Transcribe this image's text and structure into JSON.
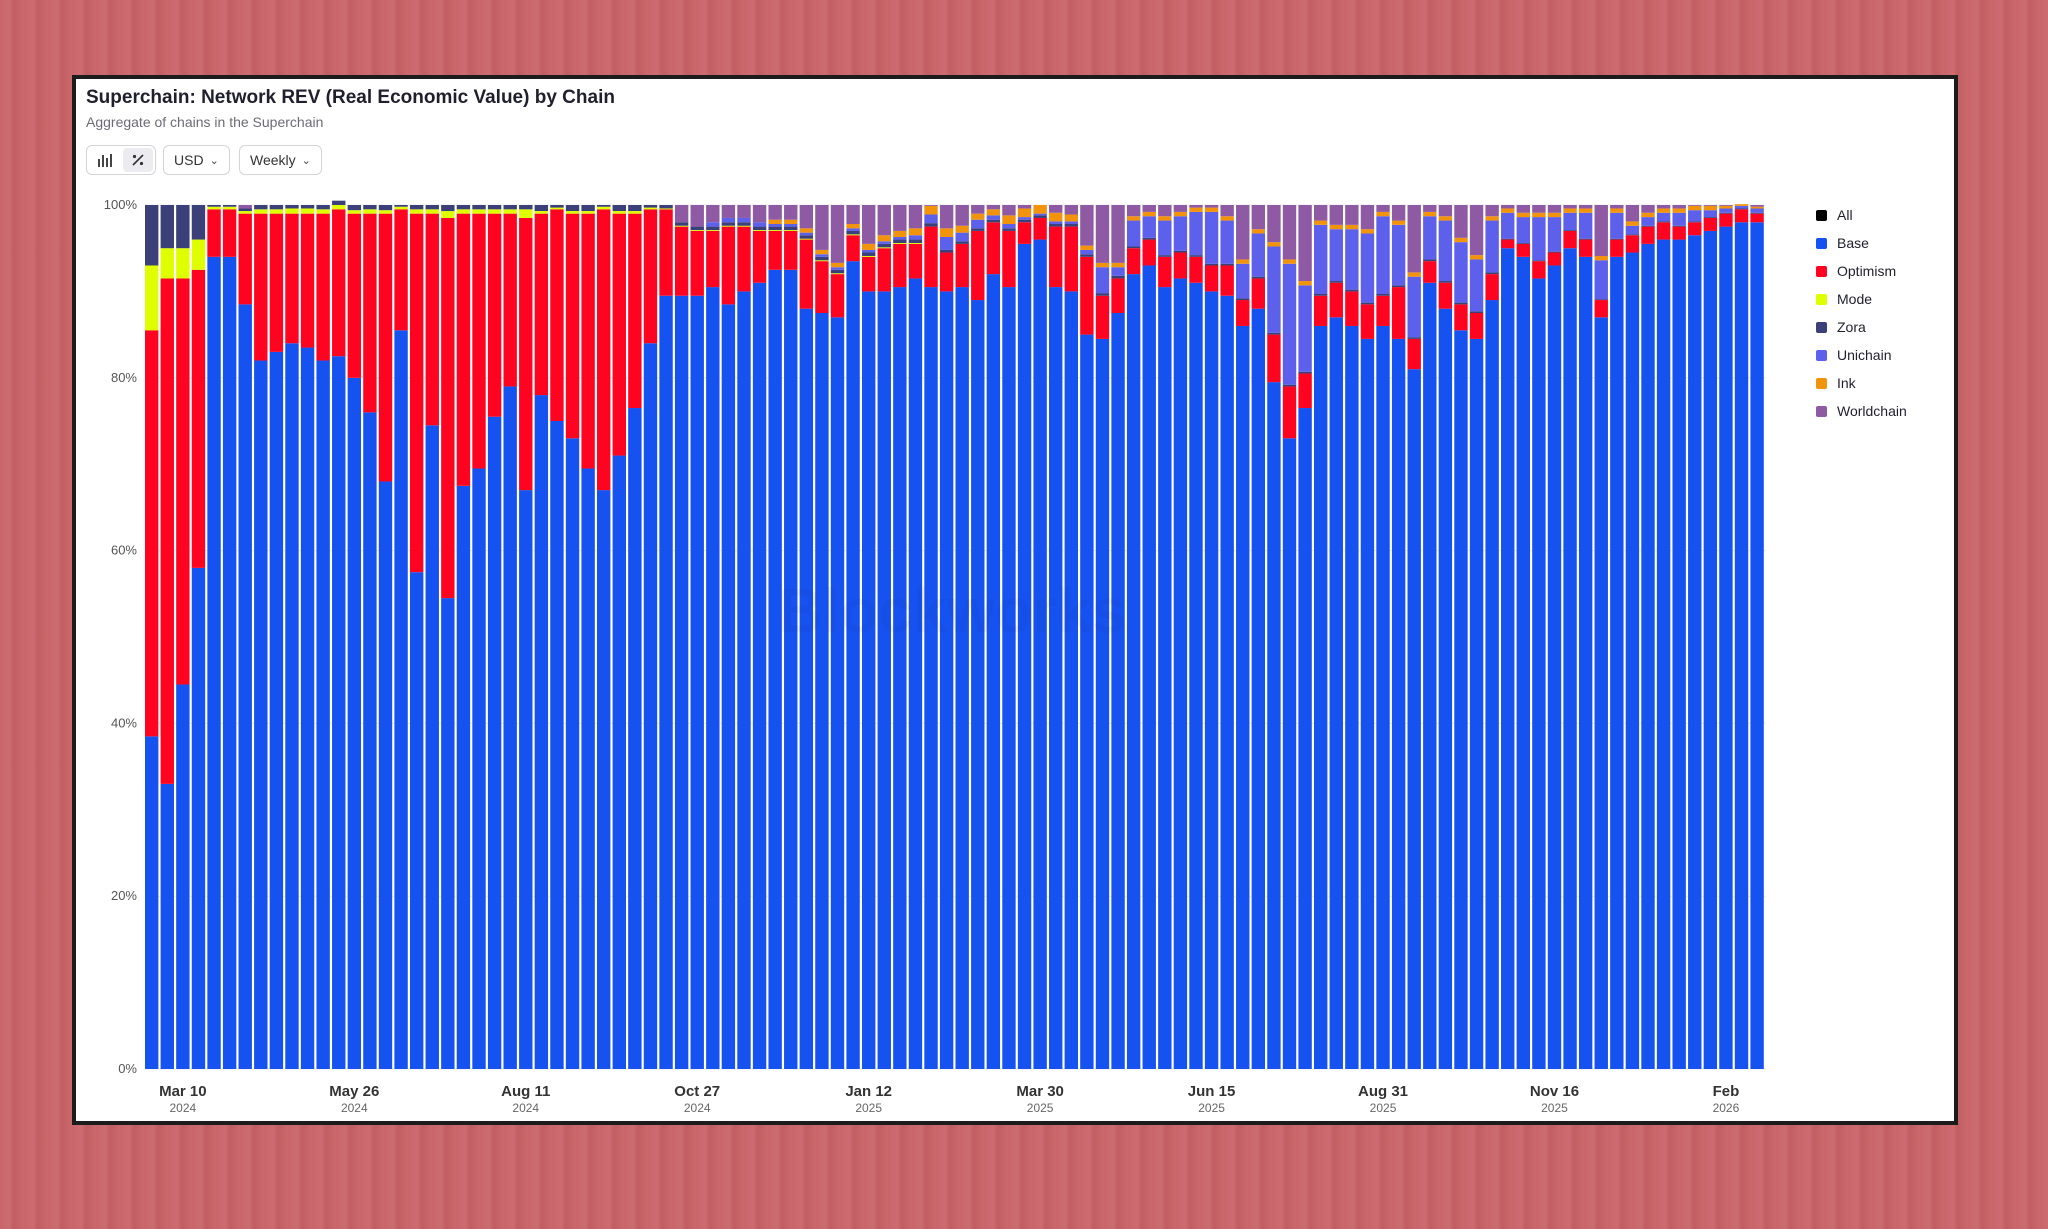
{
  "header": {
    "title": "Superchain: Network REV (Real Economic Value) by Chain",
    "subtitle": "Aggregate of chains in the Superchain"
  },
  "toolbar": {
    "bar_icon": "bar-chart-icon",
    "percent_icon": "percent-icon",
    "currency": "USD",
    "interval": "Weekly"
  },
  "legend": [
    {
      "label": "All",
      "color": "#000000"
    },
    {
      "label": "Base",
      "color": "#1652f0"
    },
    {
      "label": "Optimism",
      "color": "#ff0420"
    },
    {
      "label": "Mode",
      "color": "#dffe00"
    },
    {
      "label": "Zora",
      "color": "#3c4079"
    },
    {
      "label": "Unichain",
      "color": "#5c60ea"
    },
    {
      "label": "Ink",
      "color": "#f2930e"
    },
    {
      "label": "Worldchain",
      "color": "#8e5aa3"
    }
  ],
  "chart_data": {
    "type": "bar",
    "stacked": true,
    "normalized": true,
    "ylim": [
      0,
      100
    ],
    "y_ticks": [
      "0%",
      "20%",
      "40%",
      "60%",
      "80%",
      "100%"
    ],
    "x_ticks": [
      {
        "label": "Mar 10",
        "year": "2024",
        "index": 2
      },
      {
        "label": "May 26",
        "year": "2024",
        "index": 13
      },
      {
        "label": "Aug 11",
        "year": "2024",
        "index": 24
      },
      {
        "label": "Oct 27",
        "year": "2024",
        "index": 35
      },
      {
        "label": "Jan 12",
        "year": "2025",
        "index": 46
      },
      {
        "label": "Mar 30",
        "year": "2025",
        "index": 57
      },
      {
        "label": "Jun 15",
        "year": "2025",
        "index": 68
      },
      {
        "label": "Aug 31",
        "year": "2025",
        "index": 79
      },
      {
        "label": "Nov 16",
        "year": "2025",
        "index": 90
      },
      {
        "label": "Feb",
        "year": "2026",
        "index": 101
      }
    ],
    "series": [
      {
        "name": "Base",
        "color": "#1652f0",
        "values": [
          38.5,
          33,
          44.5,
          58,
          94,
          94,
          88.5,
          82,
          83,
          84,
          83.5,
          82,
          82.5,
          80,
          76,
          68,
          85.5,
          57.5,
          74.5,
          54.5,
          67.5,
          69.5,
          75.5,
          79,
          67,
          78,
          75,
          73,
          69.5,
          67,
          71,
          76.5,
          84,
          89.5,
          89.5,
          89.5,
          90.5,
          88.5,
          90,
          91,
          92.5,
          92.5,
          88,
          87.5,
          87,
          93.5,
          90,
          90,
          90.5,
          91.5,
          90.5,
          90,
          90.5,
          89,
          92,
          90.5,
          95.5,
          96,
          90.5,
          90,
          85,
          84.5,
          87.5,
          92,
          93,
          90.5,
          91.5,
          91,
          90,
          89.5,
          86,
          88,
          79.5,
          73,
          76.5,
          86,
          87,
          86,
          84.5,
          86,
          84.5,
          81,
          91,
          88,
          85.5,
          84.5,
          89,
          95,
          94,
          91.5,
          93,
          95,
          94,
          87,
          94,
          94.5,
          95.5,
          96,
          96,
          96.5,
          97,
          97.5,
          98,
          98
        ]
      },
      {
        "name": "Optimism",
        "color": "#ff0420",
        "values": [
          47,
          58.5,
          47,
          34.5,
          5.5,
          5.5,
          10.5,
          17,
          16,
          15,
          15.5,
          17,
          17,
          19,
          23,
          31,
          14,
          41.5,
          24.5,
          44,
          31.5,
          29.5,
          23.5,
          20,
          31.5,
          21,
          24.5,
          26,
          29.5,
          32.5,
          28,
          22.5,
          15.5,
          10,
          8,
          7.5,
          6.5,
          9,
          7.5,
          6,
          4.5,
          4.5,
          8,
          6,
          5,
          3,
          4,
          5,
          5,
          4,
          7,
          4.5,
          5,
          8,
          6,
          6.5,
          2.5,
          2.5,
          7,
          7.5,
          9,
          5,
          4,
          3,
          3,
          3.5,
          3,
          3,
          3,
          3.5,
          3,
          3.5,
          5.5,
          6,
          4,
          3.5,
          4,
          4,
          4,
          3.5,
          6,
          3.5,
          2.5,
          3,
          3,
          3,
          3,
          1,
          1.5,
          2,
          1.5,
          2,
          2,
          2,
          2,
          2,
          2,
          2,
          1.5,
          1.5,
          1.5,
          1.5,
          1.5,
          1
        ]
      },
      {
        "name": "Mode",
        "color": "#dffe00",
        "values": [
          7.5,
          3.5,
          3.5,
          3.5,
          0.3,
          0.3,
          0.3,
          0.5,
          0.5,
          0.6,
          0.6,
          0.5,
          0.5,
          0.4,
          0.5,
          0.4,
          0.3,
          0.5,
          0.5,
          0.8,
          0.5,
          0.5,
          0.5,
          0.5,
          1,
          0.3,
          0.2,
          0.3,
          0.3,
          0.3,
          0.3,
          0.3,
          0.2,
          0.1,
          0.1,
          0.1,
          0.1,
          0.1,
          0.1,
          0.1,
          0.1,
          0.1,
          0.1,
          0.1,
          0.1,
          0.1,
          0.1,
          0.1,
          0.1,
          0.1,
          0,
          0,
          0,
          0,
          0,
          0,
          0,
          0,
          0,
          0,
          0,
          0,
          0,
          0,
          0,
          0,
          0,
          0,
          0,
          0,
          0,
          0,
          0,
          0,
          0,
          0,
          0,
          0,
          0,
          0,
          0,
          0,
          0,
          0,
          0,
          0,
          0,
          0,
          0,
          0,
          0,
          0,
          0,
          0,
          0,
          0,
          0,
          0,
          0,
          0,
          0,
          0,
          0,
          0
        ]
      },
      {
        "name": "Zora",
        "color": "#3c4079",
        "values": [
          7,
          5,
          5,
          4,
          0.2,
          0.2,
          0.3,
          0.5,
          0.5,
          0.4,
          0.4,
          0.5,
          0.5,
          0.6,
          0.5,
          0.6,
          0.2,
          0.5,
          0.5,
          0.7,
          0.5,
          0.5,
          0.5,
          0.5,
          0.5,
          0.7,
          0.3,
          0.7,
          0.7,
          0.2,
          0.7,
          0.7,
          0.3,
          0.4,
          0.4,
          0.4,
          0.4,
          0.4,
          0.4,
          0.4,
          0.4,
          0.4,
          0.4,
          0.4,
          0.4,
          0.4,
          0.4,
          0.4,
          0.4,
          0.4,
          0.4,
          0.3,
          0.3,
          0.3,
          0.3,
          0.3,
          0.3,
          0.3,
          0.3,
          0.3,
          0.3,
          0.3,
          0.3,
          0.2,
          0.2,
          0.2,
          0.2,
          0.2,
          0.2,
          0.2,
          0.2,
          0.2,
          0.2,
          0.2,
          0.2,
          0.2,
          0.2,
          0.2,
          0.2,
          0.2,
          0.2,
          0.2,
          0.2,
          0.2,
          0.2,
          0.2,
          0.2,
          0.1,
          0.1,
          0.1,
          0.1,
          0.1,
          0.1,
          0.1,
          0.1,
          0.1,
          0.1,
          0.1,
          0.1,
          0.1,
          0.1,
          0.1,
          0.1,
          0.1
        ]
      },
      {
        "name": "Unichain",
        "color": "#5c60ea",
        "values": [
          0,
          0,
          0,
          0,
          0,
          0,
          0,
          0,
          0,
          0,
          0,
          0,
          0,
          0,
          0,
          0,
          0,
          0,
          0,
          0,
          0,
          0,
          0,
          0,
          0,
          0,
          0,
          0,
          0,
          0,
          0,
          0,
          0,
          0,
          0,
          0,
          0.5,
          0.5,
          0.5,
          0.5,
          0.3,
          0.3,
          0.3,
          0.3,
          0.3,
          0.3,
          0.3,
          0.3,
          0.3,
          0.5,
          1,
          1.5,
          1,
          1,
          0.5,
          0.5,
          0.3,
          0.2,
          0.3,
          0.3,
          0.5,
          3,
          1,
          3,
          2.5,
          4,
          4,
          5,
          6,
          5,
          4,
          5,
          10,
          14,
          10,
          8,
          6,
          7,
          8,
          9,
          7,
          7,
          5,
          7,
          7,
          6,
          6,
          3,
          3,
          5,
          4,
          2,
          3,
          4.5,
          3,
          1,
          1,
          1,
          1.5,
          1.3,
          0.8,
          0.5,
          0.3,
          0.5
        ]
      },
      {
        "name": "Ink",
        "color": "#f2930e",
        "values": [
          0,
          0,
          0,
          0,
          0,
          0,
          0,
          0,
          0,
          0,
          0,
          0,
          0,
          0,
          0,
          0,
          0,
          0,
          0,
          0,
          0,
          0,
          0,
          0,
          0,
          0,
          0,
          0,
          0,
          0,
          0,
          0,
          0,
          0,
          0,
          0,
          0,
          0,
          0,
          0,
          0.5,
          0.5,
          0.5,
          0.5,
          0.5,
          0.5,
          0.7,
          0.7,
          0.7,
          0.8,
          1,
          1,
          0.8,
          0.7,
          0.7,
          1,
          1,
          1,
          1,
          0.8,
          0.5,
          0.5,
          0.5,
          0.5,
          0.5,
          0.5,
          0.5,
          0.5,
          0.5,
          0.5,
          0.5,
          0.5,
          0.5,
          0.5,
          0.5,
          0.5,
          0.5,
          0.5,
          0.5,
          0.5,
          0.5,
          0.5,
          0.5,
          0.5,
          0.5,
          0.5,
          0.5,
          0.5,
          0.5,
          0.5,
          0.5,
          0.5,
          0.5,
          0.5,
          0.5,
          0.5,
          0.5,
          0.5,
          0.5,
          0.5,
          0.5,
          0.3,
          0.2,
          0.2
        ]
      }
    ]
  }
}
